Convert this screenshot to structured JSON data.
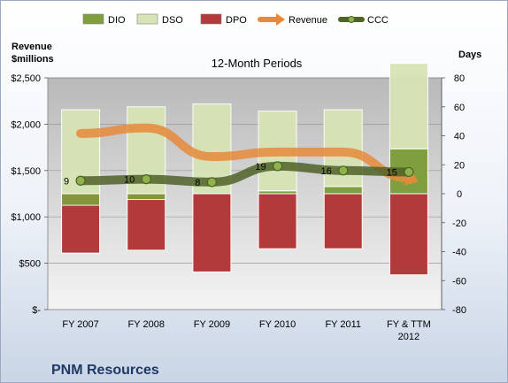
{
  "company": "PNM Resources",
  "chart_data": {
    "type": "bar",
    "title": "12-Month Periods",
    "categories": [
      "FY 2007",
      "FY 2008",
      "FY 2009",
      "FY 2010",
      "FY 2011",
      "FY & TTM 2012"
    ],
    "left_axis": {
      "title_lines": [
        "Revenue",
        "$millions"
      ],
      "ylim": [
        0,
        2500
      ],
      "ticks": [
        0,
        500,
        1000,
        1500,
        2000,
        2500
      ],
      "tick_labels": [
        "$-",
        "$500",
        "$1,000",
        "$1,500",
        "$2,000",
        "$2,500"
      ]
    },
    "right_axis": {
      "title": "Days",
      "ylim": [
        -80,
        80
      ],
      "ticks": [
        -80,
        -60,
        -40,
        -20,
        0,
        20,
        40,
        60,
        80
      ],
      "tick_labels": [
        "-80",
        "-60",
        "-40",
        "-20",
        "0",
        "20",
        "40",
        "60",
        "80"
      ]
    },
    "legend_position": "top",
    "series": [
      {
        "name": "DIO",
        "kind": "stacked-bar",
        "axis": "right",
        "color": "#7f9f3f",
        "values": [
          -8,
          -4,
          0,
          2,
          5,
          31
        ]
      },
      {
        "name": "DSO",
        "kind": "stacked-bar",
        "axis": "right",
        "color": "#d7e4b5",
        "values": [
          58,
          60,
          62,
          55,
          53,
          59
        ]
      },
      {
        "name": "DPO",
        "kind": "stacked-bar",
        "axis": "right",
        "color": "#b33a3a",
        "values": [
          -41,
          -39,
          -54,
          -38,
          -38,
          -56
        ]
      },
      {
        "name": "Revenue",
        "kind": "line",
        "axis": "left",
        "color": "#e68a3a",
        "values": [
          1900,
          1960,
          1650,
          1700,
          1700,
          1420
        ]
      },
      {
        "name": "CCC",
        "kind": "line",
        "axis": "right",
        "color": "#4f6228",
        "values": [
          9,
          10,
          8,
          19,
          16,
          15
        ]
      }
    ],
    "data_labels": [
      "9",
      "10",
      "8",
      "19",
      "16",
      "15"
    ]
  }
}
